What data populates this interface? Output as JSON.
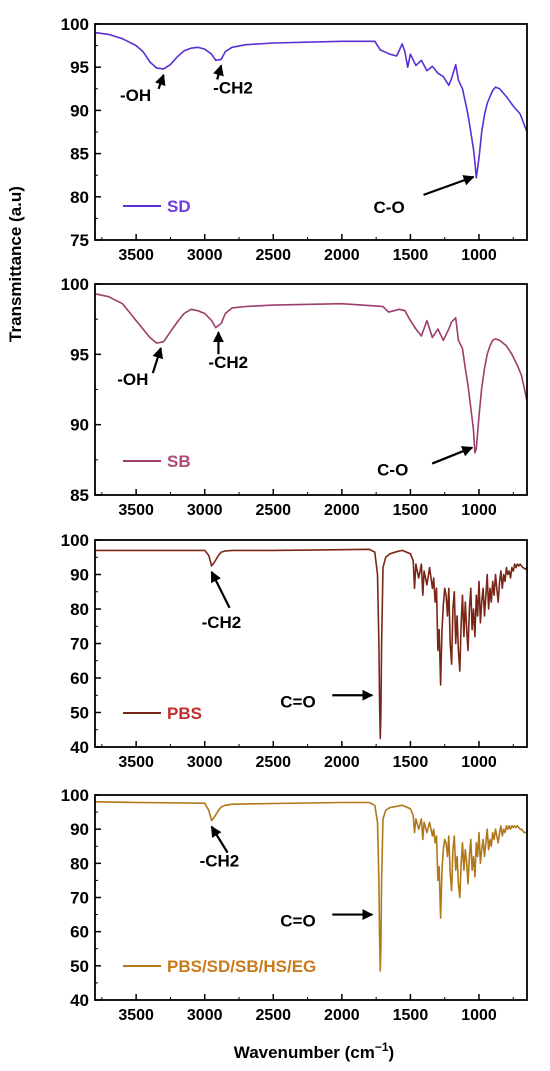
{
  "figure": {
    "shared_ylabel": "Transmittance (a.u)",
    "xlabel_text": "Wavenumber (cm",
    "xlabel_sup": "−1",
    "xlabel_close": ")"
  },
  "chart_data": [
    {
      "type": "line",
      "title": "",
      "xlabel": "",
      "ylabel": "Transmittance (a.u)",
      "xlim": [
        3800,
        650
      ],
      "ylim": [
        75,
        100
      ],
      "x_ticks": [
        3500,
        3000,
        2500,
        2000,
        1500,
        1000
      ],
      "y_ticks": [
        75,
        80,
        85,
        90,
        95,
        100
      ],
      "grid": false,
      "legend": "bottom-left",
      "series": [
        {
          "name": "SD",
          "color": "#5a2fd6",
          "legend_color": "#6f3ce0",
          "x": [
            3800,
            3700,
            3600,
            3500,
            3450,
            3400,
            3350,
            3300,
            3250,
            3200,
            3150,
            3100,
            3050,
            3000,
            2950,
            2920,
            2880,
            2850,
            2800,
            2700,
            2500,
            2000,
            1760,
            1720,
            1650,
            1600,
            1560,
            1540,
            1520,
            1500,
            1460,
            1420,
            1380,
            1340,
            1300,
            1260,
            1220,
            1200,
            1170,
            1150,
            1120,
            1100,
            1080,
            1060,
            1040,
            1030,
            1020,
            1000,
            980,
            960,
            940,
            920,
            900,
            880,
            850,
            800,
            750,
            700,
            650
          ],
          "y": [
            99,
            98.8,
            98.3,
            97.5,
            96.8,
            95.6,
            94.9,
            94.8,
            95.3,
            96.2,
            96.9,
            97.2,
            97.3,
            97.1,
            96.5,
            95.8,
            95.9,
            96.8,
            97.3,
            97.6,
            97.8,
            98.0,
            98.0,
            97.0,
            96.5,
            96.3,
            97.7,
            96.8,
            95.0,
            96.5,
            95.2,
            95.8,
            94.6,
            95.1,
            94.3,
            93.9,
            92.9,
            93.7,
            95.3,
            93.5,
            92.5,
            91.0,
            89.5,
            87.5,
            85.5,
            84.0,
            82.2,
            84.5,
            87.5,
            89.5,
            90.8,
            91.6,
            92.3,
            92.7,
            92.5,
            91.6,
            90.5,
            89.6,
            87.5
          ]
        }
      ],
      "annotations": [
        {
          "text": "-OH",
          "x": 3300,
          "y": 94.8
        },
        {
          "text": "-CH2",
          "x": 2880,
          "y": 95.9
        },
        {
          "text": "C-O",
          "x": 1040,
          "y": 83
        }
      ]
    },
    {
      "type": "line",
      "title": "",
      "xlabel": "",
      "ylabel": "Transmittance (a.u)",
      "xlim": [
        3800,
        650
      ],
      "ylim": [
        85,
        100
      ],
      "x_ticks": [
        3500,
        3000,
        2500,
        2000,
        1500,
        1000
      ],
      "y_ticks": [
        85,
        90,
        95,
        100
      ],
      "grid": false,
      "legend": "bottom-left",
      "series": [
        {
          "name": "SB",
          "color": "#9c3d6b",
          "legend_color": "#b04a78",
          "x": [
            3800,
            3700,
            3600,
            3550,
            3500,
            3450,
            3400,
            3350,
            3300,
            3250,
            3200,
            3150,
            3100,
            3050,
            3000,
            2950,
            2920,
            2880,
            2850,
            2800,
            2700,
            2500,
            2000,
            1700,
            1660,
            1620,
            1580,
            1540,
            1500,
            1460,
            1420,
            1380,
            1340,
            1300,
            1260,
            1220,
            1200,
            1170,
            1150,
            1120,
            1100,
            1080,
            1060,
            1040,
            1030,
            1020,
            1000,
            980,
            960,
            940,
            920,
            900,
            880,
            850,
            800,
            760,
            720,
            690,
            650
          ],
          "y": [
            99.3,
            99.1,
            98.6,
            98.0,
            97.4,
            96.8,
            96.2,
            95.8,
            95.9,
            96.6,
            97.3,
            97.9,
            98.2,
            98.1,
            97.9,
            97.4,
            96.9,
            97.2,
            97.9,
            98.3,
            98.4,
            98.5,
            98.6,
            98.4,
            98.0,
            98.1,
            98.2,
            98.1,
            97.4,
            96.8,
            96.3,
            97.4,
            96.2,
            96.8,
            96.0,
            96.8,
            97.3,
            97.6,
            96.0,
            95.4,
            94.0,
            92.8,
            91.2,
            89.6,
            88.0,
            88.3,
            90.6,
            92.6,
            94.0,
            95.0,
            95.6,
            96.0,
            96.1,
            96.0,
            95.6,
            95.0,
            94.2,
            93.5,
            91.7
          ]
        }
      ],
      "annotations": [
        {
          "text": "-OH",
          "x": 3320,
          "y": 95.8
        },
        {
          "text": "-CH2",
          "x": 2900,
          "y": 97.0
        },
        {
          "text": "C-O",
          "x": 1050,
          "y": 88.8
        }
      ]
    },
    {
      "type": "line",
      "title": "",
      "xlabel": "",
      "ylabel": "Transmittance (a.u)",
      "xlim": [
        3800,
        650
      ],
      "ylim": [
        40,
        100
      ],
      "x_ticks": [
        3500,
        3000,
        2500,
        2000,
        1500,
        1000
      ],
      "y_ticks": [
        40,
        50,
        60,
        70,
        80,
        90,
        100
      ],
      "grid": false,
      "legend": "bottom-left",
      "series": [
        {
          "name": "PBS",
          "color": "#7a2616",
          "legend_color": "#c62c2c",
          "x": [
            3800,
            3500,
            3000,
            2970,
            2950,
            2930,
            2900,
            2880,
            2850,
            2800,
            2500,
            2000,
            1800,
            1760,
            1740,
            1730,
            1725,
            1720,
            1715,
            1710,
            1700,
            1680,
            1650,
            1600,
            1560,
            1500,
            1480,
            1470,
            1460,
            1440,
            1420,
            1410,
            1400,
            1380,
            1360,
            1340,
            1330,
            1320,
            1310,
            1300,
            1290,
            1280,
            1270,
            1260,
            1250,
            1240,
            1230,
            1220,
            1210,
            1200,
            1190,
            1180,
            1170,
            1160,
            1150,
            1140,
            1130,
            1120,
            1110,
            1100,
            1090,
            1080,
            1070,
            1060,
            1050,
            1040,
            1030,
            1020,
            1010,
            1000,
            990,
            980,
            970,
            960,
            950,
            940,
            930,
            920,
            910,
            900,
            890,
            880,
            870,
            860,
            850,
            840,
            830,
            820,
            810,
            800,
            790,
            780,
            770,
            760,
            750,
            740,
            730,
            720,
            710,
            700,
            690,
            680,
            670,
            660,
            650
          ],
          "y": [
            97,
            97,
            97,
            95.5,
            92.5,
            93.5,
            95.5,
            96.5,
            96.8,
            97,
            97,
            97.2,
            97.3,
            96.5,
            90,
            70,
            52,
            42.5,
            50,
            70,
            92,
            95,
            96,
            96.6,
            97,
            96,
            94,
            86,
            93,
            89,
            93,
            84,
            91,
            87,
            92,
            86,
            89,
            82,
            86,
            68,
            74,
            58,
            74,
            81,
            86,
            84,
            78,
            86,
            70,
            64,
            80,
            85,
            70,
            78,
            68,
            62,
            76,
            84,
            72,
            82,
            74,
            68,
            80,
            86,
            74,
            80,
            72,
            84,
            78,
            88,
            76,
            82,
            86,
            78,
            84,
            90,
            80,
            86,
            82,
            88,
            84,
            90,
            86,
            82,
            88,
            91,
            86,
            90,
            88,
            92,
            90,
            91,
            89,
            92,
            91,
            93,
            92,
            93,
            92.5,
            93,
            92.5,
            92,
            91.8,
            91.5,
            92
          ]
        }
      ],
      "annotations": [
        {
          "text": "-CH2",
          "x": 2950,
          "y": 92.5
        },
        {
          "text": "C=O",
          "x": 1720,
          "y": 55
        }
      ]
    },
    {
      "type": "line",
      "title": "",
      "xlabel": "Wavenumber (cm−1)",
      "ylabel": "Transmittance (a.u)",
      "xlim": [
        3800,
        650
      ],
      "ylim": [
        40,
        100
      ],
      "x_ticks": [
        3500,
        3000,
        2500,
        2000,
        1500,
        1000
      ],
      "y_ticks": [
        40,
        50,
        60,
        70,
        80,
        90,
        100
      ],
      "grid": false,
      "legend": "bottom-left",
      "series": [
        {
          "name": "PBS/SD/SB/HS/EG",
          "color": "#b07818",
          "legend_color": "#c97a1a",
          "x": [
            3800,
            3500,
            3000,
            2970,
            2950,
            2930,
            2900,
            2880,
            2850,
            2800,
            2500,
            2000,
            1800,
            1760,
            1740,
            1730,
            1725,
            1720,
            1715,
            1710,
            1700,
            1680,
            1650,
            1600,
            1560,
            1500,
            1480,
            1470,
            1460,
            1440,
            1420,
            1410,
            1400,
            1380,
            1360,
            1340,
            1330,
            1320,
            1310,
            1300,
            1290,
            1280,
            1270,
            1260,
            1250,
            1240,
            1230,
            1220,
            1210,
            1200,
            1190,
            1180,
            1170,
            1160,
            1150,
            1140,
            1130,
            1120,
            1110,
            1100,
            1090,
            1080,
            1070,
            1060,
            1050,
            1040,
            1030,
            1020,
            1010,
            1000,
            990,
            980,
            970,
            960,
            950,
            940,
            930,
            920,
            910,
            900,
            890,
            880,
            870,
            860,
            850,
            840,
            830,
            820,
            810,
            800,
            790,
            780,
            770,
            760,
            750,
            740,
            730,
            720,
            710,
            700,
            690,
            680,
            670,
            660,
            650
          ],
          "y": [
            98,
            97.8,
            97.6,
            95.5,
            92.5,
            93.5,
            95.5,
            96.5,
            97,
            97.3,
            97.5,
            97.8,
            97.8,
            97,
            92,
            75,
            58,
            48.5,
            56,
            75,
            93,
            95.5,
            96.3,
            96.7,
            97,
            96,
            94,
            89,
            93,
            90,
            93,
            87,
            92,
            89,
            92,
            88,
            90,
            86,
            88,
            75,
            79,
            64,
            78,
            84,
            87,
            86,
            82,
            88,
            77,
            72,
            84,
            88,
            78,
            82,
            74,
            70,
            80,
            86,
            78,
            84,
            80,
            74,
            82,
            87,
            78,
            82,
            76,
            86,
            82,
            89,
            80,
            84,
            87,
            82,
            86,
            90,
            84,
            87,
            85,
            89,
            87,
            90,
            88,
            86,
            89,
            91,
            88,
            90,
            89,
            91,
            90,
            91,
            90,
            91,
            90.5,
            91,
            90.5,
            91,
            90.5,
            90,
            90,
            89.5,
            89,
            89,
            89
          ]
        }
      ],
      "annotations": [
        {
          "text": "-CH2",
          "x": 2950,
          "y": 92.5
        },
        {
          "text": "C=O",
          "x": 1720,
          "y": 65
        }
      ]
    }
  ]
}
